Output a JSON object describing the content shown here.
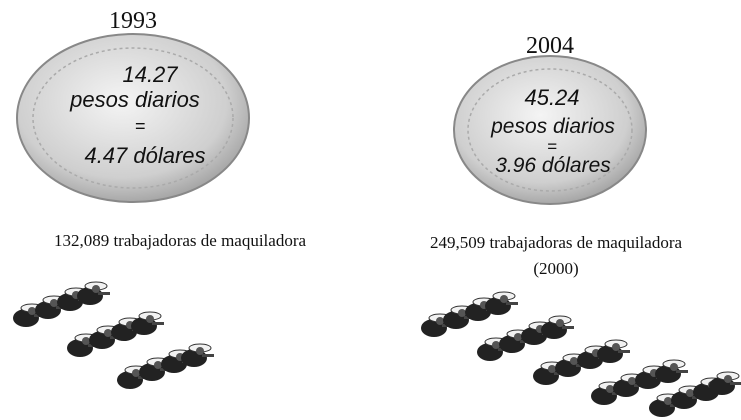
{
  "panels": [
    {
      "year": "1993",
      "coin": {
        "amount": "14.27",
        "unit": "pesos diarios",
        "equals": "=",
        "dollars": "4.47 dólares"
      },
      "workers": "132,089 trabajadoras de maquiladora"
    },
    {
      "year": "2004",
      "coin": {
        "amount": "45.24",
        "unit": "pesos diarios",
        "equals": "=",
        "dollars": "3.96 dólares"
      },
      "workers": "249,509 trabajadoras de maquiladora",
      "note": "(2000)"
    }
  ]
}
